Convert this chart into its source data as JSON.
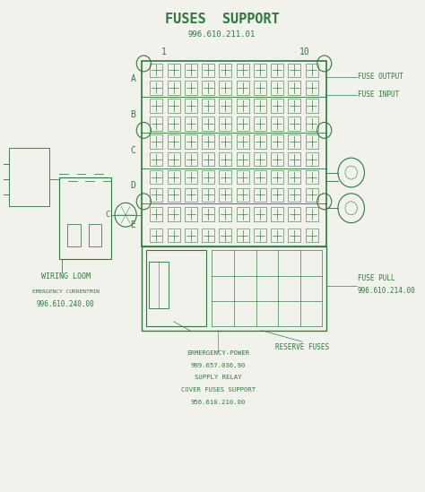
{
  "title": "FUSES  SUPPORT",
  "subtitle": "996.610.211.01",
  "bg_color": "#f2f2ec",
  "line_color": "#2d7a3a",
  "text_color": "#2d7a3a",
  "fuse_cols": 10,
  "labels_right": [
    "FUSE OUTPUT",
    "FUSE INPUT"
  ],
  "label_bottom_left_1": "WIRING LOOM",
  "label_bottom_left_2": "EMERGENCY CURRENTMIN",
  "label_bottom_left_3": "996.610.240.00",
  "label_bottom_center": [
    "ERMERGENCY-POWER",
    "999.657.036.90",
    "SUPPLY RELAY",
    "COVER FUSES SUPPORT",
    "956.610.210.00"
  ],
  "label_fuse_pull_1": "FUSE PULL",
  "label_fuse_pull_2": "996.610.214.00",
  "label_reserve": "RESERVE FUSES",
  "col_num_1": "1",
  "col_num_10": "10",
  "row_labels": [
    "A",
    "B",
    "C",
    "D",
    "E"
  ]
}
